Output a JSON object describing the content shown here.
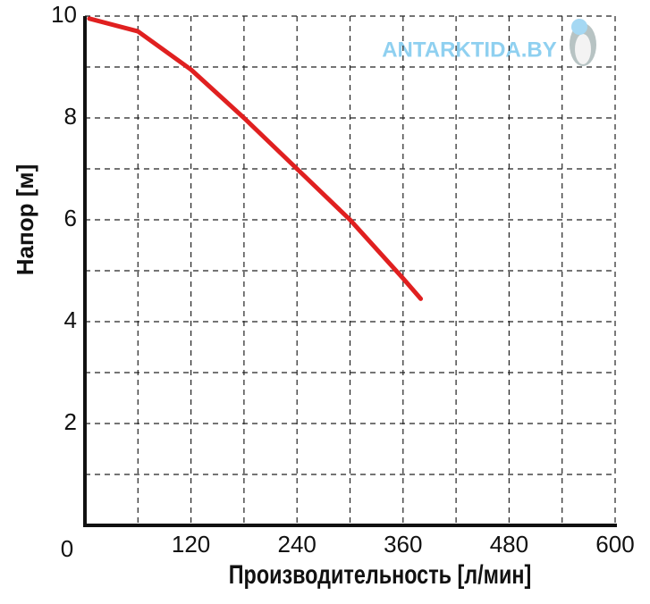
{
  "chart_data": {
    "type": "line",
    "xlabel": "Производительность [л/мин]",
    "ylabel": "Напор [м]",
    "watermark": "ANTARKTIDA.BY",
    "x": [
      5,
      60,
      120,
      180,
      240,
      300,
      360,
      380
    ],
    "series": [
      {
        "color": "#e02020",
        "values": [
          9.95,
          9.7,
          8.95,
          8.0,
          7.0,
          6.0,
          4.85,
          4.45
        ]
      }
    ],
    "xlim": [
      0,
      600
    ],
    "ylim": [
      0,
      10
    ],
    "xticks": [
      0,
      120,
      240,
      360,
      480,
      600
    ],
    "yticks": [
      2,
      4,
      6,
      8,
      10
    ],
    "minor_xticks": [
      60,
      180,
      300,
      420,
      540
    ],
    "minor_yticks": [
      1,
      3,
      5,
      7,
      9
    ],
    "grid": true
  }
}
